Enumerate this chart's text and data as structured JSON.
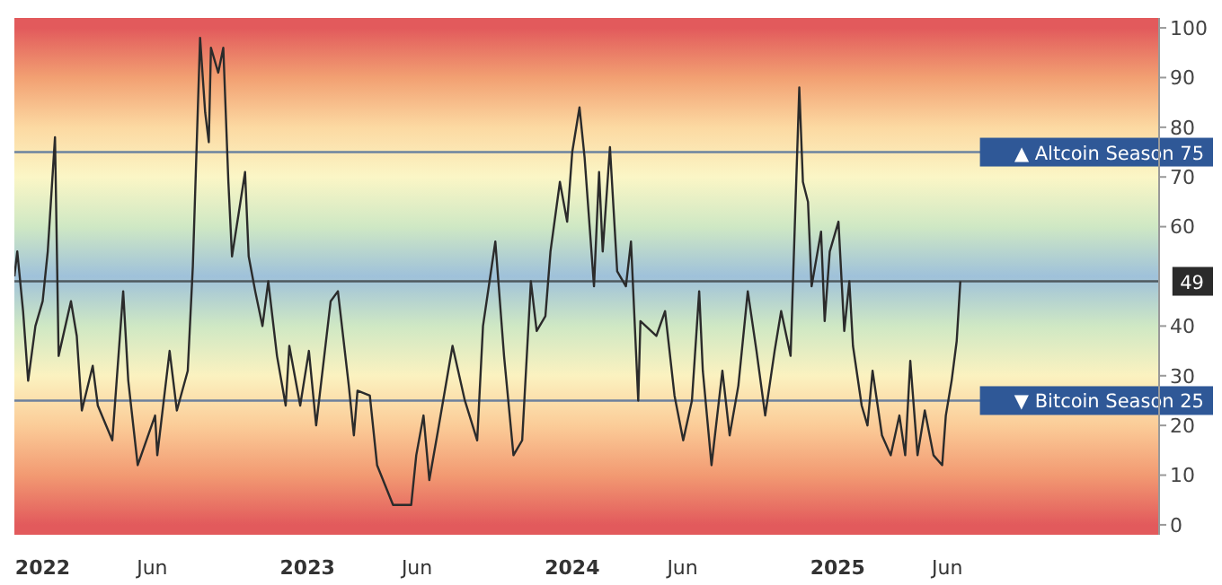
{
  "chart_data": {
    "type": "line",
    "x": [
      "2021-11-23",
      "2021-11-27",
      "2021-12-05",
      "2021-12-12",
      "2021-12-22",
      "2022-01-01",
      "2022-01-08",
      "2022-01-18",
      "2022-01-23",
      "2022-02-09",
      "2022-02-17",
      "2022-02-24",
      "2022-03-11",
      "2022-03-18",
      "2022-04-07",
      "2022-04-22",
      "2022-04-29",
      "2022-05-12",
      "2022-06-05",
      "2022-06-08",
      "2022-06-25",
      "2022-07-05",
      "2022-07-20",
      "2022-07-27",
      "2022-08-06",
      "2022-08-13",
      "2022-08-18",
      "2022-08-21",
      "2022-08-31",
      "2022-09-07",
      "2022-09-14",
      "2022-09-19",
      "2022-10-07",
      "2022-10-12",
      "2022-10-21",
      "2022-10-31",
      "2022-11-08",
      "2022-11-20",
      "2022-12-02",
      "2022-12-07",
      "2022-12-22",
      "2023-01-03",
      "2023-01-13",
      "2023-02-02",
      "2023-02-12",
      "2023-02-27",
      "2023-03-06",
      "2023-03-11",
      "2023-03-28",
      "2023-04-07",
      "2023-04-29",
      "2023-05-24",
      "2023-05-31",
      "2023-06-10",
      "2023-06-18",
      "2023-06-30",
      "2023-07-20",
      "2023-08-06",
      "2023-08-23",
      "2023-08-31",
      "2023-09-17",
      "2023-09-29",
      "2023-10-12",
      "2023-10-24",
      "2023-11-05",
      "2023-11-13",
      "2023-11-25",
      "2023-12-02",
      "2023-12-15",
      "2023-12-25",
      "2024-01-01",
      "2024-01-11",
      "2024-01-18",
      "2024-01-31",
      "2024-02-07",
      "2024-02-12",
      "2024-02-22",
      "2024-03-03",
      "2024-03-15",
      "2024-03-22",
      "2024-04-01",
      "2024-04-04",
      "2024-04-26",
      "2024-05-08",
      "2024-05-21",
      "2024-06-02",
      "2024-06-14",
      "2024-06-24",
      "2024-06-29",
      "2024-07-11",
      "2024-07-26",
      "2024-08-05",
      "2024-08-17",
      "2024-08-30",
      "2024-09-11",
      "2024-09-23",
      "2024-10-06",
      "2024-10-15",
      "2024-10-28",
      "2024-11-09",
      "2024-11-14",
      "2024-11-21",
      "2024-11-26",
      "2024-12-09",
      "2024-12-14",
      "2024-12-21",
      "2025-01-02",
      "2025-01-10",
      "2025-01-17",
      "2025-01-22",
      "2025-02-03",
      "2025-02-11",
      "2025-02-18",
      "2025-03-03",
      "2025-03-15",
      "2025-03-27",
      "2025-04-04",
      "2025-04-11",
      "2025-04-21",
      "2025-05-01",
      "2025-05-13",
      "2025-05-25",
      "2025-05-30",
      "2025-06-07",
      "2025-06-14",
      "2025-06-19"
    ],
    "series": [
      {
        "color": "#2b2b2b",
        "values": [
          50,
          55,
          43,
          29,
          40,
          45,
          55,
          78,
          34,
          45,
          38,
          23,
          32,
          24,
          17,
          47,
          29,
          12,
          22,
          14,
          35,
          23,
          31,
          52,
          98,
          83,
          77,
          96,
          91,
          96,
          69,
          54,
          71,
          54,
          47,
          40,
          49,
          34,
          24,
          36,
          24,
          35,
          20,
          45,
          47,
          28,
          18,
          27,
          26,
          12,
          4,
          4,
          14,
          22,
          9,
          19,
          36,
          25,
          17,
          40,
          57,
          34,
          14,
          17,
          49,
          39,
          42,
          55,
          69,
          61,
          75,
          84,
          74,
          48,
          71,
          55,
          76,
          51,
          48,
          57,
          25,
          41,
          38,
          43,
          26,
          17,
          25,
          47,
          31,
          12,
          31,
          18,
          28,
          47,
          35,
          22,
          35,
          43,
          34,
          88,
          69,
          65,
          48,
          59,
          41,
          55,
          61,
          39,
          49,
          36,
          24,
          20,
          31,
          18,
          14,
          22,
          14,
          33,
          14,
          23,
          14,
          12,
          22,
          29,
          37,
          49
        ]
      }
    ],
    "xlim": [
      "2021-11-23",
      "2026-03-20"
    ],
    "xticks": [
      {
        "value": "2022-01-01",
        "label": "2022"
      },
      {
        "value": "2022-06-01",
        "label": "Jun"
      },
      {
        "value": "2023-01-01",
        "label": "2023"
      },
      {
        "value": "2023-06-01",
        "label": "Jun"
      },
      {
        "value": "2024-01-01",
        "label": "2024"
      },
      {
        "value": "2024-06-01",
        "label": "Jun"
      },
      {
        "value": "2025-01-01",
        "label": "2025"
      },
      {
        "value": "2025-06-01",
        "label": "Jun"
      }
    ],
    "ylim": [
      -2,
      102
    ],
    "yticks": [
      0,
      10,
      20,
      30,
      40,
      60,
      70,
      80,
      90,
      100
    ],
    "ref_lines": [
      {
        "axis": "y",
        "value": 75,
        "label": "▲ Altcoin Season 75",
        "color": "#2f5897"
      },
      {
        "axis": "y",
        "value": 49,
        "label": "49",
        "color": "#2b2b2b"
      },
      {
        "axis": "y",
        "value": 25,
        "label": "▼ Bitcoin Season 25",
        "color": "#2f5897"
      }
    ],
    "grid": false,
    "legend": false,
    "marker": "none",
    "line_style": "solid"
  }
}
